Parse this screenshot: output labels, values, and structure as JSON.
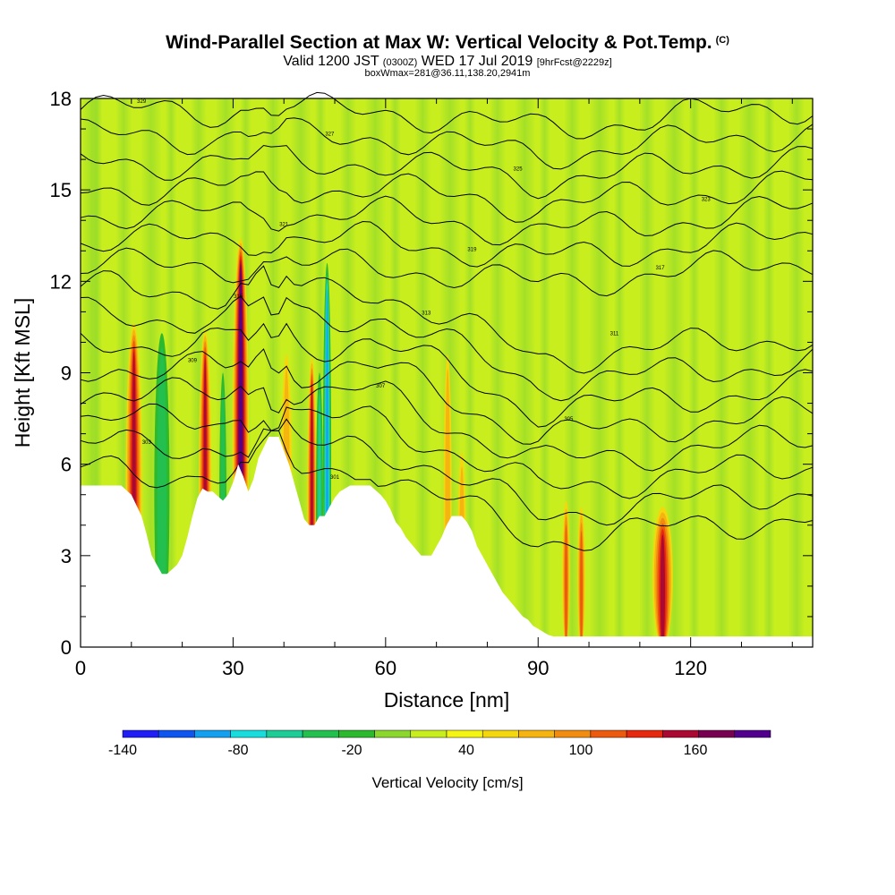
{
  "header": {
    "title": "Wind-Parallel Section at Max W: Vertical Velocity & Pot.Temp.",
    "title_mark": "(C)",
    "valid_a": "Valid 1200 JST",
    "valid_utc": "(0300Z)",
    "valid_b": "WED 17 Jul 2019",
    "fcst": "[9hrFcst@2229z]",
    "box": "boxWmax=281@36.11,138.20,2941m"
  },
  "colorbar": {
    "title": "Vertical Velocity [cm/s]",
    "labels": [
      "-140",
      "-80",
      "-20",
      "40",
      "100",
      "160"
    ],
    "colors": [
      "#1e1ef5",
      "#0f55f0",
      "#14a0f0",
      "#19dcdc",
      "#1ecc96",
      "#23c050",
      "#2db92d",
      "#8cd72d",
      "#c8ee1e",
      "#f5f514",
      "#f5d70f",
      "#f5b40f",
      "#f08c0f",
      "#eb5a0f",
      "#e6280f",
      "#aa0a32",
      "#780050",
      "#50008c"
    ]
  },
  "chart_data": {
    "type": "heatmap",
    "title": "Wind-Parallel Section at Max W: Vertical Velocity & Pot.Temp.",
    "xlabel": "Distance [nm]",
    "ylabel": "Height [Kft MSL]",
    "xlim": [
      0,
      144
    ],
    "ylim": [
      0,
      18
    ],
    "x_ticks": [
      "0",
      "30",
      "60",
      "90",
      "120"
    ],
    "y_ticks": [
      "0",
      "3",
      "6",
      "9",
      "12",
      "15",
      "18"
    ],
    "x_tick_values": [
      0,
      30,
      60,
      90,
      120
    ],
    "y_tick_values": [
      0,
      3,
      6,
      9,
      12,
      15,
      18
    ],
    "terrain": {
      "x": [
        0,
        8,
        10,
        12,
        13,
        14,
        15,
        16,
        17,
        19,
        20,
        21,
        22,
        23,
        24,
        25,
        26,
        28,
        29,
        30,
        31,
        32,
        33,
        34,
        35,
        37,
        39,
        41,
        42,
        43,
        44,
        45,
        46,
        47,
        48,
        49,
        50,
        51,
        52,
        53,
        55,
        57,
        59,
        60,
        61,
        62,
        63,
        64,
        65,
        66,
        67,
        68,
        69,
        70,
        71,
        72,
        73,
        74,
        75,
        76,
        77,
        78,
        79,
        80,
        81,
        82,
        83,
        84,
        85,
        86,
        87,
        88,
        89,
        90,
        91,
        92,
        93,
        95,
        97,
        144
      ],
      "y": [
        5.3,
        5.3,
        5.0,
        4.3,
        3.7,
        3.0,
        2.7,
        2.4,
        2.4,
        2.7,
        3.0,
        3.6,
        4.3,
        4.9,
        5.2,
        5.1,
        5.1,
        4.8,
        5.0,
        5.4,
        6.0,
        5.6,
        5.1,
        5.5,
        6.2,
        6.9,
        6.9,
        6.0,
        5.4,
        4.8,
        4.2,
        4.0,
        4.0,
        4.3,
        4.3,
        4.6,
        4.9,
        5.1,
        5.2,
        5.3,
        5.3,
        5.3,
        5.0,
        4.8,
        4.5,
        4.1,
        3.9,
        3.6,
        3.4,
        3.2,
        3.0,
        3.0,
        3.0,
        3.3,
        3.6,
        4.0,
        4.3,
        4.3,
        4.3,
        4.1,
        3.8,
        3.3,
        3.0,
        2.7,
        2.4,
        2.1,
        1.8,
        1.6,
        1.4,
        1.2,
        1.0,
        0.9,
        0.7,
        0.6,
        0.5,
        0.4,
        0.35,
        0.35,
        0.35,
        0.35
      ]
    },
    "velocity_cells": [
      {
        "x": 10.5,
        "ytop": 10.6,
        "w": 3.2,
        "v": 140
      },
      {
        "x": 24.5,
        "ytop": 10.4,
        "w": 2.5,
        "v": 140
      },
      {
        "x": 31.5,
        "ytop": 13.4,
        "w": 3.2,
        "v": 180
      },
      {
        "x": 40.5,
        "ytop": 9.6,
        "w": 2.2,
        "v": 60
      },
      {
        "x": 45.5,
        "ytop": 9.5,
        "w": 1.8,
        "v": 150
      },
      {
        "x": 48.5,
        "ytop": 12.6,
        "w": 1.6,
        "v": -120
      },
      {
        "x": 72.2,
        "ytop": 9.6,
        "w": 1.6,
        "v": 60
      },
      {
        "x": 75.0,
        "ytop": 6.4,
        "w": 1.6,
        "v": 60
      },
      {
        "x": 95.5,
        "ytop": 4.8,
        "w": 1.5,
        "v": 100
      },
      {
        "x": 98.5,
        "ytop": 4.6,
        "w": 1.5,
        "v": 100
      },
      {
        "x": 114.5,
        "ytop": 4.6,
        "w": 4.0,
        "v": 140
      },
      {
        "x": 16.0,
        "ytop": 10.3,
        "w": 3.0,
        "v": -70
      },
      {
        "x": 28.0,
        "ytop": 9.0,
        "w": 1.4,
        "v": -60
      },
      {
        "x": 47.0,
        "ytop": 9.0,
        "w": 1.4,
        "v": -80
      }
    ],
    "theta_contour_labels": [
      "329",
      "327",
      "325",
      "323",
      "321",
      "319",
      "317",
      "315",
      "313",
      "311",
      "309",
      "307",
      "305",
      "303",
      "301"
    ]
  }
}
